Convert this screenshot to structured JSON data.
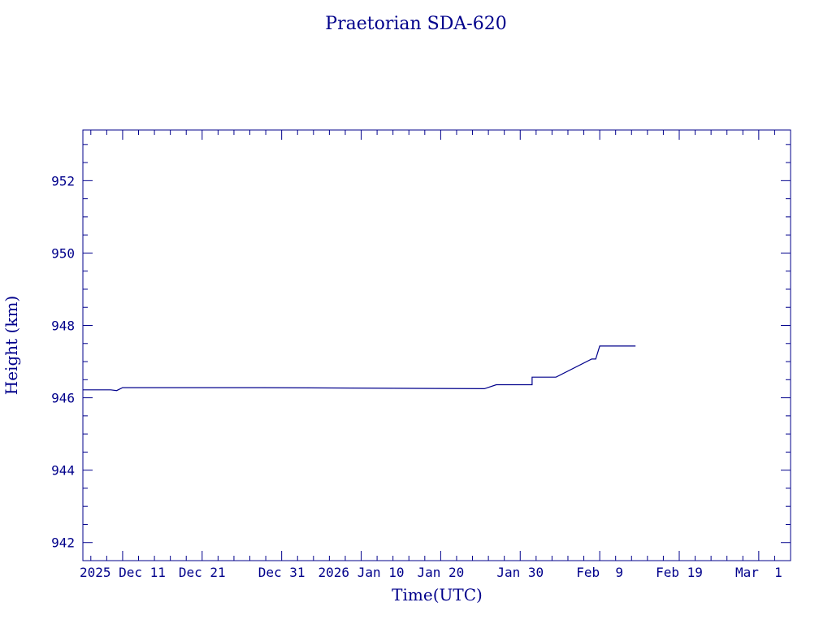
{
  "chart_data": {
    "type": "line",
    "title": "Praetorian SDA-620",
    "xlabel": "Time(UTC)",
    "ylabel": "Height (km)",
    "x_unit": "date (UTC)",
    "xlim": [
      "2025-12-06",
      "2026-03-05"
    ],
    "ylim": [
      941.5,
      953.4
    ],
    "y_ticks": [
      942,
      944,
      946,
      948,
      950,
      952
    ],
    "x_tick_labels": [
      {
        "date": "2025-12-11",
        "label": "2025 Dec 11"
      },
      {
        "date": "2025-12-21",
        "label": "Dec 21"
      },
      {
        "date": "2025-12-31",
        "label": "Dec 31"
      },
      {
        "date": "2026-01-10",
        "label": "2026 Jan 10"
      },
      {
        "date": "2026-01-20",
        "label": "Jan 20"
      },
      {
        "date": "2026-01-30",
        "label": "Jan 30"
      },
      {
        "date": "2026-02-09",
        "label": "Feb  9"
      },
      {
        "date": "2026-02-19",
        "label": "Feb 19"
      },
      {
        "date": "2026-03-01",
        "label": "Mar  1"
      }
    ],
    "grid": false,
    "colors": {
      "axis": "#00008b",
      "line": "#00008b"
    },
    "series": [
      {
        "points": [
          {
            "x": "2025-12-06 00:00",
            "y": 946.22
          },
          {
            "x": "2025-12-09 12:00",
            "y": 946.22
          },
          {
            "x": "2025-12-10 06:00",
            "y": 946.2
          },
          {
            "x": "2025-12-11 00:00",
            "y": 946.28
          },
          {
            "x": "2025-12-28 12:00",
            "y": 946.28
          },
          {
            "x": "2026-01-25 12:00",
            "y": 946.25
          },
          {
            "x": "2026-01-27 00:00",
            "y": 946.36
          },
          {
            "x": "2026-01-31 12:00",
            "y": 946.36
          },
          {
            "x": "2026-01-31 12:00",
            "y": 946.57
          },
          {
            "x": "2026-02-03 12:00",
            "y": 946.57
          },
          {
            "x": "2026-02-08 00:00",
            "y": 947.07
          },
          {
            "x": "2026-02-08 12:00",
            "y": 947.07
          },
          {
            "x": "2026-02-09 00:00",
            "y": 947.43
          },
          {
            "x": "2026-02-13 12:00",
            "y": 947.43
          }
        ]
      }
    ]
  }
}
